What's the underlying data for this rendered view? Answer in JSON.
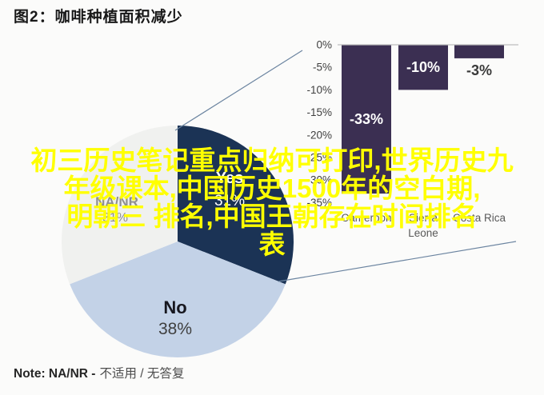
{
  "figure": {
    "title": "图2：咖啡种植面积减少",
    "note_label": "Note: NA/NR -",
    "note_desc": "不适用 / 无答复"
  },
  "watermark": {
    "color": "#ffff00",
    "lines": [
      "初三历史笔记重点归纳可打印,世界历史九",
      "年级课本,中国历史1500年的空白期,",
      "明朝三 排名,中国王朝存在时间排名",
      "表"
    ]
  },
  "chart_data": [
    {
      "type": "pie",
      "title": "",
      "legend": "none",
      "start_angle_deg": 0,
      "direction": "clockwise",
      "slices": [
        {
          "label": "Yes",
          "value": 31,
          "color": "#1b3355",
          "name_color": "#ffffff",
          "pct_color": "#ffffff"
        },
        {
          "label": "No",
          "value": 38,
          "color": "#c3d2e7",
          "name_color": "#17171f",
          "pct_color": "#3f3f3f"
        },
        {
          "label": "NA/NR",
          "value": 31,
          "color": "#f0f1ef",
          "name_color": "#8f8f8f",
          "pct_color": "#8f8f8f"
        }
      ]
    },
    {
      "type": "bar",
      "orientation": "vertical",
      "title": "",
      "xlabel": "",
      "ylabel": "",
      "grid": false,
      "categories": [
        "Cameroon",
        "Sierra Leone",
        "Costa Rica"
      ],
      "category_lines": [
        [
          "Cameroon"
        ],
        [
          "Sierra",
          "Leone"
        ],
        [
          "Costa Rica"
        ]
      ],
      "values": [
        -33,
        -10,
        -3
      ],
      "value_labels": [
        "-33%",
        "-10%",
        "-3%"
      ],
      "yticks": [
        "0%",
        "-5%",
        "-10%",
        "-15%",
        "-20%",
        "-25%",
        "-30%",
        "-35%"
      ],
      "ylim": [
        0,
        -35
      ],
      "bar_color": "#3b2f52",
      "inside_label_color": "#ffffff",
      "outside_label_color": "#3a3a3a",
      "axis_color": "#bdbdbd",
      "tick_color": "#3f3f3f",
      "category_color": "#595959"
    }
  ],
  "connector": {
    "color": "#6b84a0"
  }
}
